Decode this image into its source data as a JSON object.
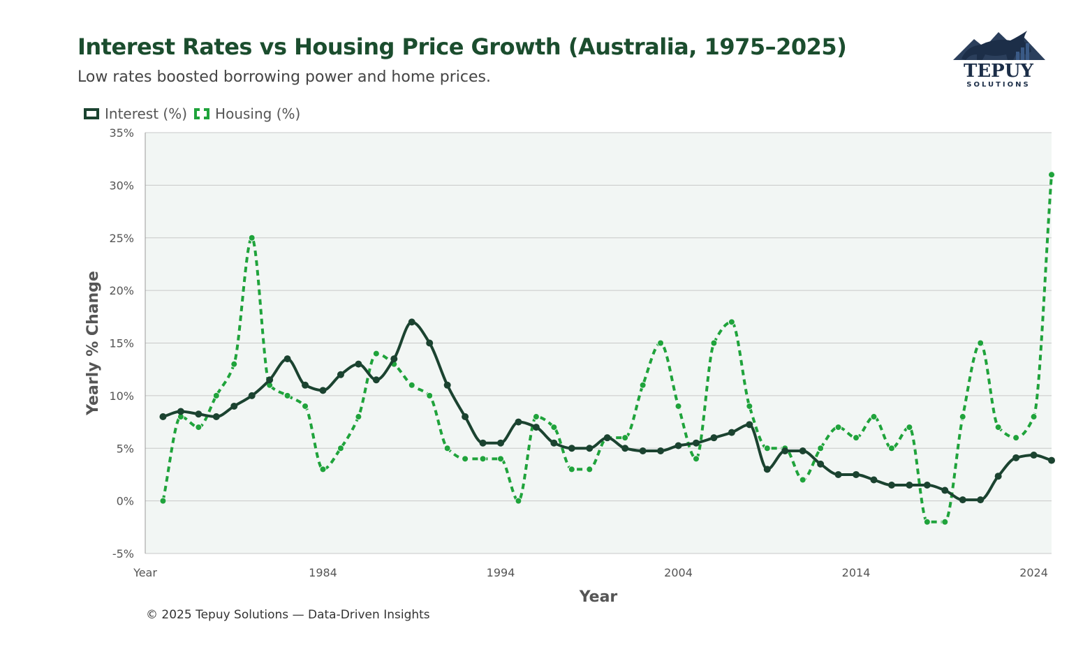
{
  "header": {
    "title": "Interest Rates vs Housing Price Growth (Australia, 1975–2025)",
    "subtitle": "Low rates boosted borrowing power and home prices."
  },
  "logo": {
    "name": "TEPUY",
    "tagline": "SOLUTIONS",
    "icon": "bull-icon"
  },
  "footer": {
    "text": "© 2025 Tepuy Solutions — Data-Driven Insights"
  },
  "colors": {
    "title": "#1b4d2e",
    "interest": "#1b4330",
    "housing": "#1fa33b",
    "plot_bg": "#f2f6f4",
    "grid": "#c8c8c8"
  },
  "chart_data": {
    "type": "line",
    "title": "Interest Rates vs Housing Price Growth (Australia, 1975–2025)",
    "xlabel": "Year",
    "ylabel": "Yearly % Change",
    "ylim": [
      -5,
      35
    ],
    "xlim": [
      1974,
      2025
    ],
    "y_ticks": [
      -5,
      0,
      5,
      10,
      15,
      20,
      25,
      30,
      35
    ],
    "y_tick_labels": [
      "-5%",
      "0%",
      "5%",
      "10%",
      "15%",
      "20%",
      "25%",
      "30%",
      "35%"
    ],
    "x_ticks": [
      1974,
      1984,
      1994,
      2004,
      2014,
      2024
    ],
    "x_tick_labels": [
      "Year",
      "1984",
      "1994",
      "2004",
      "2014",
      "2024"
    ],
    "grid": true,
    "legend": "top-left",
    "x": [
      1975,
      1976,
      1977,
      1978,
      1979,
      1980,
      1981,
      1982,
      1983,
      1984,
      1985,
      1986,
      1987,
      1988,
      1989,
      1990,
      1991,
      1992,
      1993,
      1994,
      1995,
      1996,
      1997,
      1998,
      1999,
      2000,
      2001,
      2002,
      2003,
      2004,
      2005,
      2006,
      2007,
      2008,
      2009,
      2010,
      2011,
      2012,
      2013,
      2014,
      2015,
      2016,
      2017,
      2018,
      2019,
      2020,
      2021,
      2022,
      2023,
      2024,
      2025
    ],
    "series": [
      {
        "name": "Interest (%)",
        "style": "solid",
        "values": [
          8,
          8.5,
          8.25,
          8,
          9,
          10,
          11.5,
          13.5,
          11,
          10.5,
          12,
          13,
          11.5,
          13.5,
          17,
          15,
          11,
          8,
          5.5,
          5.5,
          7.5,
          7,
          5.5,
          5,
          5,
          6,
          5,
          4.75,
          4.75,
          5.25,
          5.5,
          6,
          6.5,
          7.25,
          3,
          4.75,
          4.75,
          3.5,
          2.5,
          2.5,
          2,
          1.5,
          1.5,
          1.5,
          1,
          0.1,
          0.1,
          2.35,
          4.1,
          4.35,
          3.85
        ]
      },
      {
        "name": "Housing (%)",
        "style": "dashed",
        "values": [
          0,
          8,
          7,
          10,
          13,
          25,
          11,
          10,
          9,
          3,
          5,
          8,
          14,
          13,
          11,
          10,
          5,
          4,
          4,
          4,
          0,
          8,
          7,
          3,
          3,
          6,
          6,
          11,
          15,
          9,
          4,
          15,
          17,
          9,
          5,
          5,
          2,
          5,
          7,
          6,
          8,
          5,
          7,
          -2,
          -2,
          8,
          15,
          7,
          6,
          8,
          31
        ]
      }
    ]
  }
}
